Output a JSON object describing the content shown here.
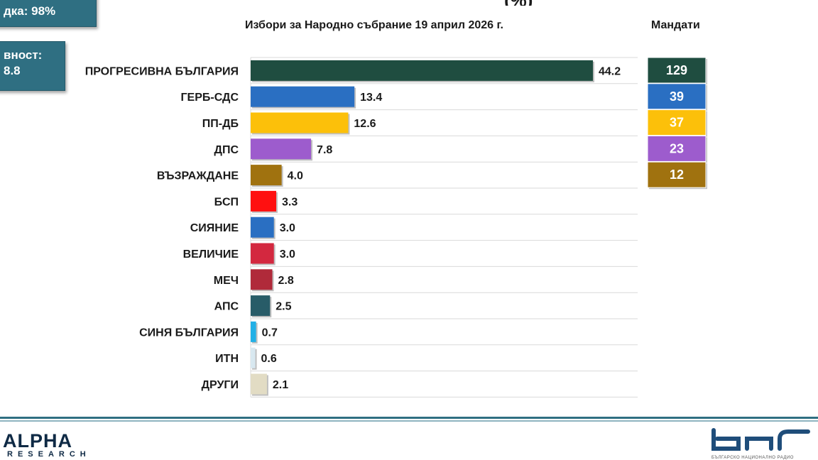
{
  "header": {
    "processed_label": "дка: 98%",
    "turnout_label": "вност:",
    "turnout_value": "8.8",
    "title_fragment": "(%)",
    "subtitle": "Избори за Народно събрание 19 април 2026 г.",
    "seats_title": "Мандати"
  },
  "chart_data": {
    "type": "bar",
    "orientation": "horizontal",
    "title": "Избори за Народно събрание 19 април 2026 г.",
    "categories": [
      "ПРОГРЕСИВНА БЪЛГАРИЯ",
      "ГЕРБ-СДС",
      "ПП-ДБ",
      "ДПС",
      "ВЪЗРАЖДАНЕ",
      "БСП",
      "СИЯНИЕ",
      "ВЕЛИЧИЕ",
      "МЕЧ",
      "АПС",
      "СИНЯ БЪЛГАРИЯ",
      "ИТН",
      "ДРУГИ"
    ],
    "values": [
      44.2,
      13.4,
      12.6,
      7.8,
      4.0,
      3.3,
      3.0,
      3.0,
      2.8,
      2.5,
      0.7,
      0.6,
      2.1
    ],
    "value_labels": [
      "44.2",
      "13.4",
      "12.6",
      "7.8",
      "4.0",
      "3.3",
      "3.0",
      "3.0",
      "2.8",
      "2.5",
      "0.7",
      "0.6",
      "2.1"
    ],
    "colors": [
      "#1f4d40",
      "#2a6fc2",
      "#fcc00a",
      "#9d5ccd",
      "#a0720f",
      "#ff1010",
      "#2a6fc2",
      "#d3283f",
      "#b02a3a",
      "#285c68",
      "#22b0e6",
      "#d8e8f0",
      "#e2dcc4"
    ],
    "xlim": [
      0,
      50
    ],
    "grid": true,
    "seats": {
      "title": "Мандати",
      "labels": [
        "129",
        "39",
        "37",
        "23",
        "12"
      ],
      "values": [
        129,
        39,
        37,
        23,
        12
      ],
      "colors": [
        "#1f4d40",
        "#2a6fc2",
        "#fcc00a",
        "#9d5ccd",
        "#a0720f"
      ]
    }
  },
  "logos": {
    "alpha_main": "ALPHA",
    "alpha_sub": "RESEARCH",
    "bnr_caption": "БЪЛГАРСКО НАЦИОНАЛНО РАДИО"
  }
}
